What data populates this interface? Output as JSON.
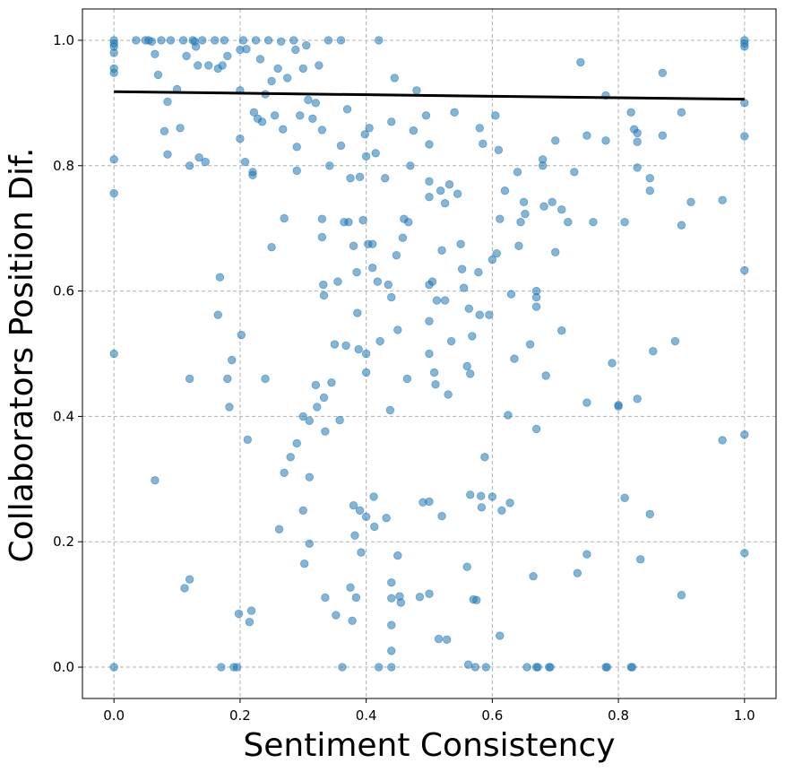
{
  "chart_data": {
    "type": "scatter",
    "xlabel": "Sentiment Consistency",
    "ylabel": "Collaborators Position Dif.",
    "xlim": [
      -0.05,
      1.05
    ],
    "ylim": [
      -0.05,
      1.05
    ],
    "xticks": [
      0.0,
      0.2,
      0.4,
      0.6,
      0.8,
      1.0
    ],
    "xtick_labels": [
      "0.0",
      "0.2",
      "0.4",
      "0.6",
      "0.8",
      "1.0"
    ],
    "yticks": [
      0.0,
      0.2,
      0.4,
      0.6,
      0.8,
      1.0
    ],
    "ytick_labels": [
      "0.0",
      "0.2",
      "0.4",
      "0.6",
      "0.8",
      "1.0"
    ],
    "grid": true,
    "point_color": "#1f77b4",
    "point_alpha": 0.55,
    "trend_line": {
      "color": "#000000",
      "points": [
        [
          0.0,
          0.918
        ],
        [
          1.0,
          0.906
        ]
      ]
    },
    "points": [
      [
        0.0,
        1.0
      ],
      [
        0.0,
        0.995
      ],
      [
        0.0,
        0.99
      ],
      [
        0.0,
        0.98
      ],
      [
        0.0,
        0.955
      ],
      [
        0.0,
        0.948
      ],
      [
        0.0,
        0.81
      ],
      [
        0.0,
        0.756
      ],
      [
        0.0,
        0.5
      ],
      [
        0.0,
        0.0
      ],
      [
        0.035,
        1.0
      ],
      [
        0.05,
        1.0
      ],
      [
        0.055,
        1.0
      ],
      [
        0.06,
        0.998
      ],
      [
        0.065,
        0.978
      ],
      [
        0.07,
        0.945
      ],
      [
        0.065,
        0.298
      ],
      [
        0.075,
        1.0
      ],
      [
        0.08,
        0.855
      ],
      [
        0.085,
        0.818
      ],
      [
        0.085,
        0.902
      ],
      [
        0.09,
        1.0
      ],
      [
        0.1,
        0.922
      ],
      [
        0.105,
        0.86
      ],
      [
        0.11,
        1.0
      ],
      [
        0.112,
        0.126
      ],
      [
        0.115,
        0.975
      ],
      [
        0.12,
        0.14
      ],
      [
        0.12,
        0.8
      ],
      [
        0.12,
        0.46
      ],
      [
        0.125,
        1.0
      ],
      [
        0.128,
        0.998
      ],
      [
        0.13,
        0.99
      ],
      [
        0.133,
        0.96
      ],
      [
        0.135,
        0.813
      ],
      [
        0.14,
        1.0
      ],
      [
        0.145,
        0.806
      ],
      [
        0.15,
        0.96
      ],
      [
        0.16,
        1.0
      ],
      [
        0.165,
        0.955
      ],
      [
        0.165,
        0.562
      ],
      [
        0.168,
        0.622
      ],
      [
        0.17,
        0.0
      ],
      [
        0.172,
        0.96
      ],
      [
        0.175,
        1.0
      ],
      [
        0.18,
        0.975
      ],
      [
        0.18,
        0.46
      ],
      [
        0.183,
        0.415
      ],
      [
        0.187,
        0.49
      ],
      [
        0.19,
        0.0
      ],
      [
        0.195,
        0.0
      ],
      [
        0.198,
        0.085
      ],
      [
        0.2,
        0.985
      ],
      [
        0.2,
        0.92
      ],
      [
        0.2,
        0.843
      ],
      [
        0.202,
        0.53
      ],
      [
        0.205,
        1.0
      ],
      [
        0.208,
        0.806
      ],
      [
        0.21,
        0.986
      ],
      [
        0.212,
        0.363
      ],
      [
        0.215,
        0.072
      ],
      [
        0.218,
        0.09
      ],
      [
        0.22,
        0.79
      ],
      [
        0.22,
        0.785
      ],
      [
        0.222,
        0.885
      ],
      [
        0.225,
        1.0
      ],
      [
        0.228,
        0.875
      ],
      [
        0.232,
        0.97
      ],
      [
        0.235,
        0.87
      ],
      [
        0.24,
        0.914
      ],
      [
        0.24,
        0.46
      ],
      [
        0.245,
        1.0
      ],
      [
        0.25,
        0.935
      ],
      [
        0.25,
        0.67
      ],
      [
        0.255,
        0.88
      ],
      [
        0.26,
        0.955
      ],
      [
        0.262,
        0.22
      ],
      [
        0.265,
        0.998
      ],
      [
        0.268,
        0.858
      ],
      [
        0.27,
        0.716
      ],
      [
        0.27,
        0.31
      ],
      [
        0.275,
        0.94
      ],
      [
        0.28,
        0.335
      ],
      [
        0.285,
        1.0
      ],
      [
        0.288,
        0.985
      ],
      [
        0.29,
        0.83
      ],
      [
        0.29,
        0.792
      ],
      [
        0.29,
        0.357
      ],
      [
        0.295,
        0.88
      ],
      [
        0.3,
        0.955
      ],
      [
        0.3,
        0.4
      ],
      [
        0.3,
        0.25
      ],
      [
        0.302,
        0.165
      ],
      [
        0.305,
        0.992
      ],
      [
        0.308,
        0.905
      ],
      [
        0.31,
        0.393
      ],
      [
        0.31,
        0.303
      ],
      [
        0.31,
        0.197
      ],
      [
        0.315,
        0.875
      ],
      [
        0.32,
        0.9
      ],
      [
        0.32,
        0.45
      ],
      [
        0.322,
        0.415
      ],
      [
        0.325,
        0.96
      ],
      [
        0.33,
        0.857
      ],
      [
        0.33,
        0.715
      ],
      [
        0.33,
        0.686
      ],
      [
        0.332,
        0.61
      ],
      [
        0.333,
        0.593
      ],
      [
        0.333,
        0.43
      ],
      [
        0.335,
        0.376
      ],
      [
        0.335,
        0.111
      ],
      [
        0.34,
        1.0
      ],
      [
        0.342,
        0.8
      ],
      [
        0.345,
        0.454
      ],
      [
        0.35,
        0.515
      ],
      [
        0.352,
        0.083
      ],
      [
        0.355,
        0.615
      ],
      [
        0.358,
        0.394
      ],
      [
        0.36,
        1.0
      ],
      [
        0.36,
        0.832
      ],
      [
        0.362,
        0.0
      ],
      [
        0.365,
        0.71
      ],
      [
        0.368,
        0.513
      ],
      [
        0.37,
        0.89
      ],
      [
        0.372,
        0.71
      ],
      [
        0.375,
        0.78
      ],
      [
        0.375,
        0.127
      ],
      [
        0.378,
        0.074
      ],
      [
        0.38,
        0.672
      ],
      [
        0.38,
        0.258
      ],
      [
        0.382,
        0.21
      ],
      [
        0.384,
        0.111
      ],
      [
        0.385,
        0.63
      ],
      [
        0.386,
        0.565
      ],
      [
        0.388,
        0.507
      ],
      [
        0.39,
        0.782
      ],
      [
        0.39,
        0.25
      ],
      [
        0.392,
        0.183
      ],
      [
        0.395,
        0.713
      ],
      [
        0.398,
        0.85
      ],
      [
        0.4,
        0.815
      ],
      [
        0.4,
        0.5
      ],
      [
        0.4,
        0.47
      ],
      [
        0.4,
        0.24
      ],
      [
        0.403,
        0.675
      ],
      [
        0.405,
        0.86
      ],
      [
        0.41,
        0.675
      ],
      [
        0.41,
        0.637
      ],
      [
        0.412,
        0.272
      ],
      [
        0.413,
        0.224
      ],
      [
        0.415,
        0.82
      ],
      [
        0.418,
        0.615
      ],
      [
        0.42,
        1.0
      ],
      [
        0.42,
        0.0
      ],
      [
        0.422,
        0.52
      ],
      [
        0.43,
        0.78
      ],
      [
        0.432,
        0.238
      ],
      [
        0.435,
        0.61
      ],
      [
        0.438,
        0.41
      ],
      [
        0.44,
        0.87
      ],
      [
        0.44,
        0.59
      ],
      [
        0.44,
        0.135
      ],
      [
        0.44,
        0.11
      ],
      [
        0.44,
        0.067
      ],
      [
        0.44,
        0.026
      ],
      [
        0.44,
        0.0
      ],
      [
        0.445,
        0.94
      ],
      [
        0.448,
        0.657
      ],
      [
        0.45,
        0.538
      ],
      [
        0.45,
        0.178
      ],
      [
        0.453,
        0.113
      ],
      [
        0.455,
        0.103
      ],
      [
        0.458,
        0.685
      ],
      [
        0.46,
        0.715
      ],
      [
        0.465,
        0.46
      ],
      [
        0.467,
        0.71
      ],
      [
        0.47,
        0.8
      ],
      [
        0.475,
        0.856
      ],
      [
        0.48,
        0.92
      ],
      [
        0.485,
        0.112
      ],
      [
        0.49,
        0.263
      ],
      [
        0.495,
        0.88
      ],
      [
        0.5,
        0.834
      ],
      [
        0.5,
        0.775
      ],
      [
        0.5,
        0.75
      ],
      [
        0.5,
        0.61
      ],
      [
        0.5,
        0.552
      ],
      [
        0.5,
        0.5
      ],
      [
        0.5,
        0.264
      ],
      [
        0.5,
        0.117
      ],
      [
        0.505,
        0.615
      ],
      [
        0.508,
        0.47
      ],
      [
        0.51,
        0.451
      ],
      [
        0.512,
        0.585
      ],
      [
        0.515,
        0.045
      ],
      [
        0.518,
        0.76
      ],
      [
        0.52,
        0.665
      ],
      [
        0.52,
        0.241
      ],
      [
        0.525,
        0.74
      ],
      [
        0.525,
        0.585
      ],
      [
        0.528,
        0.044
      ],
      [
        0.53,
        0.435
      ],
      [
        0.532,
        0.77
      ],
      [
        0.535,
        0.52
      ],
      [
        0.54,
        0.885
      ],
      [
        0.545,
        0.755
      ],
      [
        0.55,
        0.675
      ],
      [
        0.552,
        0.635
      ],
      [
        0.555,
        0.605
      ],
      [
        0.56,
        0.48
      ],
      [
        0.56,
        0.16
      ],
      [
        0.562,
        0.004
      ],
      [
        0.563,
        0.572
      ],
      [
        0.565,
        0.468
      ],
      [
        0.565,
        0.275
      ],
      [
        0.568,
        0.528
      ],
      [
        0.57,
        0.108
      ],
      [
        0.573,
        0.0
      ],
      [
        0.575,
        0.107
      ],
      [
        0.578,
        0.63
      ],
      [
        0.58,
        0.86
      ],
      [
        0.58,
        0.562
      ],
      [
        0.582,
        0.273
      ],
      [
        0.583,
        0.255
      ],
      [
        0.585,
        0.835
      ],
      [
        0.588,
        0.335
      ],
      [
        0.59,
        0.0
      ],
      [
        0.595,
        0.562
      ],
      [
        0.6,
        0.65
      ],
      [
        0.6,
        0.272
      ],
      [
        0.605,
        0.88
      ],
      [
        0.607,
        0.66
      ],
      [
        0.61,
        0.825
      ],
      [
        0.612,
        0.715
      ],
      [
        0.612,
        0.05
      ],
      [
        0.615,
        0.25
      ],
      [
        0.62,
        0.76
      ],
      [
        0.625,
        0.402
      ],
      [
        0.628,
        0.262
      ],
      [
        0.63,
        0.595
      ],
      [
        0.635,
        0.492
      ],
      [
        0.64,
        0.79
      ],
      [
        0.642,
        0.672
      ],
      [
        0.645,
        0.71
      ],
      [
        0.65,
        0.742
      ],
      [
        0.652,
        0.723
      ],
      [
        0.655,
        0.0
      ],
      [
        0.66,
        0.515
      ],
      [
        0.665,
        0.145
      ],
      [
        0.67,
        0.6
      ],
      [
        0.67,
        0.59
      ],
      [
        0.67,
        0.575
      ],
      [
        0.67,
        0.38
      ],
      [
        0.67,
        0.0
      ],
      [
        0.672,
        0.0
      ],
      [
        0.68,
        0.81
      ],
      [
        0.68,
        0.8
      ],
      [
        0.682,
        0.735
      ],
      [
        0.685,
        0.465
      ],
      [
        0.69,
        0.0
      ],
      [
        0.692,
        0.0
      ],
      [
        0.695,
        0.742
      ],
      [
        0.7,
        0.662
      ],
      [
        0.7,
        0.84
      ],
      [
        0.71,
        0.73
      ],
      [
        0.71,
        0.537
      ],
      [
        0.72,
        0.71
      ],
      [
        0.73,
        0.79
      ],
      [
        0.735,
        0.15
      ],
      [
        0.74,
        0.965
      ],
      [
        0.75,
        0.848
      ],
      [
        0.75,
        0.422
      ],
      [
        0.75,
        0.18
      ],
      [
        0.76,
        0.71
      ],
      [
        0.78,
        0.912
      ],
      [
        0.78,
        0.84
      ],
      [
        0.78,
        0.0
      ],
      [
        0.782,
        0.0
      ],
      [
        0.79,
        0.485
      ],
      [
        0.8,
        0.418
      ],
      [
        0.8,
        0.416
      ],
      [
        0.81,
        0.71
      ],
      [
        0.81,
        0.27
      ],
      [
        0.82,
        0.885
      ],
      [
        0.82,
        0.0
      ],
      [
        0.822,
        0.0
      ],
      [
        0.825,
        0.858
      ],
      [
        0.83,
        0.852
      ],
      [
        0.83,
        0.838
      ],
      [
        0.83,
        0.797
      ],
      [
        0.83,
        0.428
      ],
      [
        0.835,
        0.172
      ],
      [
        0.85,
        0.78
      ],
      [
        0.85,
        0.76
      ],
      [
        0.85,
        0.244
      ],
      [
        0.855,
        0.504
      ],
      [
        0.87,
        0.948
      ],
      [
        0.87,
        0.848
      ],
      [
        0.89,
        0.52
      ],
      [
        0.9,
        0.885
      ],
      [
        0.9,
        0.705
      ],
      [
        0.9,
        0.115
      ],
      [
        0.915,
        0.742
      ],
      [
        0.965,
        0.745
      ],
      [
        0.965,
        0.362
      ],
      [
        1.0,
        1.0
      ],
      [
        1.0,
        0.995
      ],
      [
        1.0,
        0.99
      ],
      [
        1.0,
        0.9
      ],
      [
        1.0,
        0.847
      ],
      [
        1.0,
        0.633
      ],
      [
        1.0,
        0.371
      ],
      [
        1.0,
        0.182
      ]
    ]
  }
}
